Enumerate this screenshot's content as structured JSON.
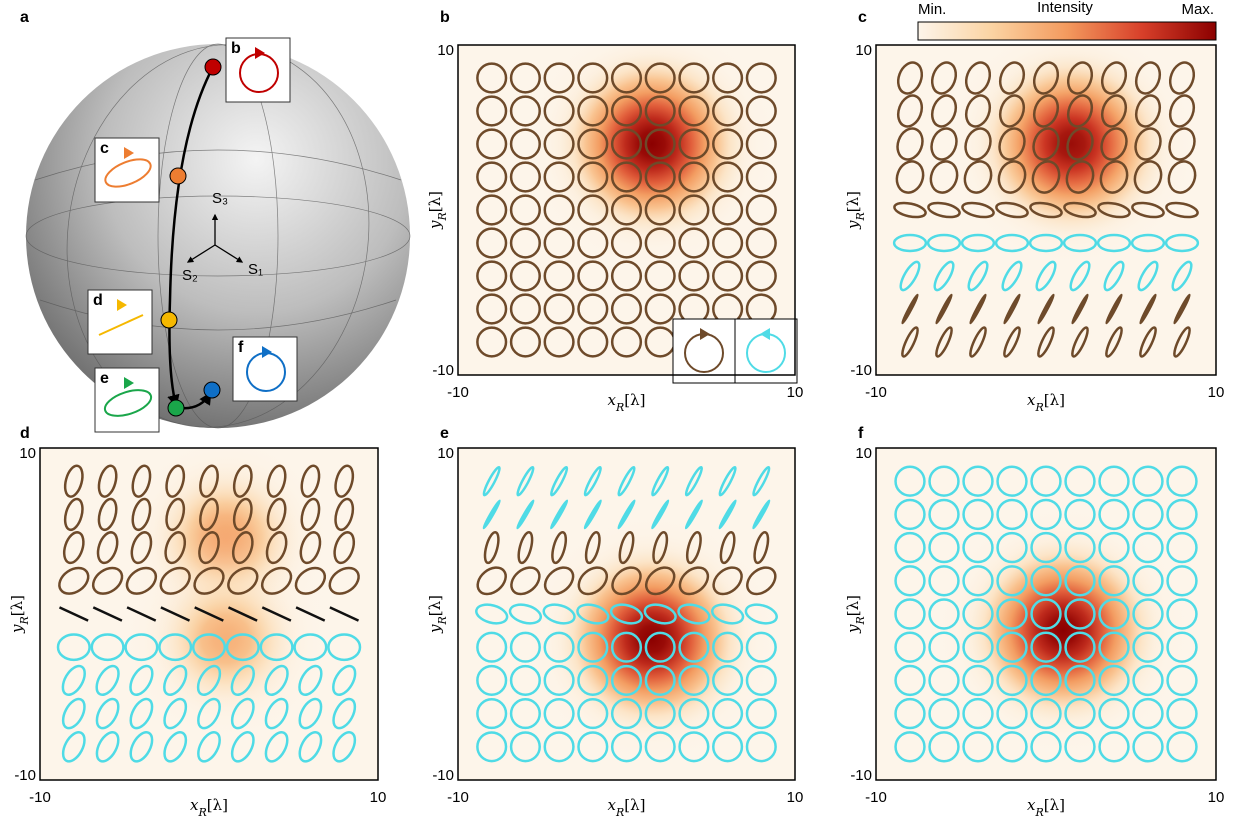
{
  "sphere": {
    "panel_label": "a",
    "axes": [
      "S₁",
      "S₂",
      "S₃"
    ],
    "states": [
      {
        "label": "b",
        "color": "#c00000"
      },
      {
        "label": "c",
        "color": "#ed7d31"
      },
      {
        "label": "d",
        "color": "#f5b800"
      },
      {
        "label": "e",
        "color": "#1aa64a"
      },
      {
        "label": "f",
        "color": "#0f6fc6"
      }
    ]
  },
  "colorbar": {
    "min_label": "Min.",
    "title": "Intensity",
    "max_label": "Max.",
    "colors": [
      "#fdf5ea",
      "#fbd3a2",
      "#f39a5e",
      "#d8402a",
      "#8b0000"
    ]
  },
  "colors": {
    "right": "#6e4a2a",
    "left": "#4fdbe6",
    "linear": "#111111"
  },
  "chart_data": [
    {
      "type": "heatmap",
      "panel_label": "b",
      "xlabel": {
        "symbol": "x",
        "subscript": "R",
        "unit": "[λ]"
      },
      "ylabel": {
        "symbol": "y",
        "subscript": "R",
        "unit": "[λ]"
      },
      "xlim": [
        -10,
        10
      ],
      "ylim": [
        -10,
        10
      ],
      "xticks": [
        -10,
        10
      ],
      "yticks": [
        -10,
        10
      ],
      "legend": "lower right",
      "peaks": [
        {
          "x": 1.5,
          "y": 4,
          "amplitude": 1,
          "sigma": 2.6
        }
      ],
      "ellipse_rows": [
        {
          "hand": "right",
          "axis_ratio": 1,
          "tilt": 0
        },
        {
          "hand": "right",
          "axis_ratio": 1,
          "tilt": 0
        },
        {
          "hand": "right",
          "axis_ratio": 1,
          "tilt": 0
        },
        {
          "hand": "right",
          "axis_ratio": 1,
          "tilt": 0
        },
        {
          "hand": "right",
          "axis_ratio": 1,
          "tilt": 0
        },
        {
          "hand": "right",
          "axis_ratio": 1,
          "tilt": 0
        },
        {
          "hand": "right",
          "axis_ratio": 1,
          "tilt": 0
        },
        {
          "hand": "right",
          "axis_ratio": 1,
          "tilt": 0
        },
        {
          "hand": "right",
          "axis_ratio": 1,
          "tilt": 0
        }
      ]
    },
    {
      "type": "heatmap",
      "panel_label": "c",
      "xlabel": {
        "symbol": "x",
        "subscript": "R",
        "unit": "[λ]"
      },
      "ylabel": {
        "symbol": "y",
        "subscript": "R",
        "unit": "[λ]"
      },
      "xlim": [
        -10,
        10
      ],
      "ylim": [
        -10,
        10
      ],
      "xticks": [
        -10,
        10
      ],
      "yticks": [
        -10,
        10
      ],
      "peaks": [
        {
          "x": 1.5,
          "y": 4,
          "amplitude": 0.95,
          "sigma": 2.6
        }
      ],
      "ellipse_rows": [
        {
          "hand": "right",
          "axis_ratio": 0.7,
          "tilt": 70
        },
        {
          "hand": "right",
          "axis_ratio": 0.7,
          "tilt": 70
        },
        {
          "hand": "right",
          "axis_ratio": 0.75,
          "tilt": 70
        },
        {
          "hand": "right",
          "axis_ratio": 0.8,
          "tilt": 70
        },
        {
          "hand": "right",
          "axis_ratio": 0.4,
          "tilt": -12
        },
        {
          "hand": "left",
          "axis_ratio": 0.5,
          "tilt": 0
        },
        {
          "hand": "left",
          "axis_ratio": 0.35,
          "tilt": 60
        },
        {
          "hand": "right",
          "axis_ratio": 0.08,
          "tilt": 62
        },
        {
          "hand": "right",
          "axis_ratio": 0.25,
          "tilt": 65
        }
      ]
    },
    {
      "type": "heatmap",
      "panel_label": "d",
      "xlabel": {
        "symbol": "x",
        "subscript": "R",
        "unit": "[λ]"
      },
      "ylabel": {
        "symbol": "y",
        "subscript": "R",
        "unit": "[λ]"
      },
      "xlim": [
        -10,
        10
      ],
      "ylim": [
        -10,
        10
      ],
      "xticks": [
        -10,
        10
      ],
      "yticks": [
        -10,
        10
      ],
      "peaks": [
        {
          "x": 1,
          "y": 4.5,
          "amplitude": 0.45,
          "sigma": 2.4
        },
        {
          "x": 1,
          "y": -1.5,
          "amplitude": 0.4,
          "sigma": 2.4
        }
      ],
      "ellipse_rows": [
        {
          "hand": "right",
          "axis_ratio": 0.5,
          "tilt": 75
        },
        {
          "hand": "right",
          "axis_ratio": 0.5,
          "tilt": 75
        },
        {
          "hand": "right",
          "axis_ratio": 0.55,
          "tilt": 72
        },
        {
          "hand": "right",
          "axis_ratio": 0.7,
          "tilt": 35
        },
        {
          "hand": "linear",
          "axis_ratio": 0,
          "tilt": -25
        },
        {
          "hand": "left",
          "axis_ratio": 0.8,
          "tilt": 0
        },
        {
          "hand": "left",
          "axis_ratio": 0.55,
          "tilt": 60
        },
        {
          "hand": "left",
          "axis_ratio": 0.55,
          "tilt": 62
        },
        {
          "hand": "left",
          "axis_ratio": 0.55,
          "tilt": 62
        }
      ]
    },
    {
      "type": "heatmap",
      "panel_label": "e",
      "xlabel": {
        "symbol": "x",
        "subscript": "R",
        "unit": "[λ]"
      },
      "ylabel": {
        "symbol": "y",
        "subscript": "R",
        "unit": "[λ]"
      },
      "xlim": [
        -10,
        10
      ],
      "ylim": [
        -10,
        10
      ],
      "xticks": [
        -10,
        10
      ],
      "yticks": [
        -10,
        10
      ],
      "peaks": [
        {
          "x": 1.5,
          "y": -1.5,
          "amplitude": 1,
          "sigma": 2.6
        }
      ],
      "ellipse_rows": [
        {
          "hand": "left",
          "axis_ratio": 0.18,
          "tilt": 62
        },
        {
          "hand": "left",
          "axis_ratio": 0.08,
          "tilt": 60
        },
        {
          "hand": "right",
          "axis_ratio": 0.35,
          "tilt": 75
        },
        {
          "hand": "right",
          "axis_ratio": 0.7,
          "tilt": 40
        },
        {
          "hand": "left",
          "axis_ratio": 0.55,
          "tilt": -15
        },
        {
          "hand": "left",
          "axis_ratio": 1,
          "tilt": 0
        },
        {
          "hand": "left",
          "axis_ratio": 1,
          "tilt": 0
        },
        {
          "hand": "left",
          "axis_ratio": 1,
          "tilt": 0
        },
        {
          "hand": "left",
          "axis_ratio": 1,
          "tilt": 0
        }
      ]
    },
    {
      "type": "heatmap",
      "panel_label": "f",
      "xlabel": {
        "symbol": "x",
        "subscript": "R",
        "unit": "[λ]"
      },
      "ylabel": {
        "symbol": "y",
        "subscript": "R",
        "unit": "[λ]"
      },
      "xlim": [
        -10,
        10
      ],
      "ylim": [
        -10,
        10
      ],
      "xticks": [
        -10,
        10
      ],
      "yticks": [
        -10,
        10
      ],
      "peaks": [
        {
          "x": 1,
          "y": -1,
          "amplitude": 1,
          "sigma": 2.6
        }
      ],
      "ellipse_rows": [
        {
          "hand": "left",
          "axis_ratio": 1,
          "tilt": 0
        },
        {
          "hand": "left",
          "axis_ratio": 1,
          "tilt": 0
        },
        {
          "hand": "left",
          "axis_ratio": 1,
          "tilt": 0
        },
        {
          "hand": "left",
          "axis_ratio": 1,
          "tilt": 0
        },
        {
          "hand": "left",
          "axis_ratio": 1,
          "tilt": 0
        },
        {
          "hand": "left",
          "axis_ratio": 1,
          "tilt": 0
        },
        {
          "hand": "left",
          "axis_ratio": 1,
          "tilt": 0
        },
        {
          "hand": "left",
          "axis_ratio": 1,
          "tilt": 0
        },
        {
          "hand": "left",
          "axis_ratio": 1,
          "tilt": 0
        }
      ]
    }
  ]
}
